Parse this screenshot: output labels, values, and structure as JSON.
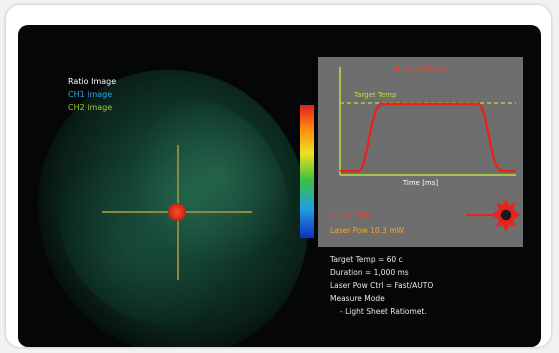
{
  "legend": {
    "items": [
      {
        "label": "Ratio Image",
        "color": "#ffffff"
      },
      {
        "label": "CH1 image",
        "color": "#29a8e0"
      },
      {
        "label": "CH2 image",
        "color": "#9ad03a"
      }
    ]
  },
  "graph": {
    "title": "In vivo Temp",
    "target_label": "Target Temp",
    "x_label": "Time [ms]",
    "trace_color": "#e8231c",
    "target_color": "#b8e040"
  },
  "laser": {
    "status": "Laser : ON",
    "power": "Laser Pow 10.3 mW",
    "icon": "laser-burst-icon",
    "status_color": "#ff3b2b",
    "power_color": "#f5a623"
  },
  "settings": {
    "lines": [
      "Target Temp = 60 c",
      "Duration = 1,000 ms",
      "Laser Pow Ctrl = Fast/AUTO",
      "Measure Mode"
    ],
    "sub_line": "- Light Sheet Ratiomet."
  }
}
